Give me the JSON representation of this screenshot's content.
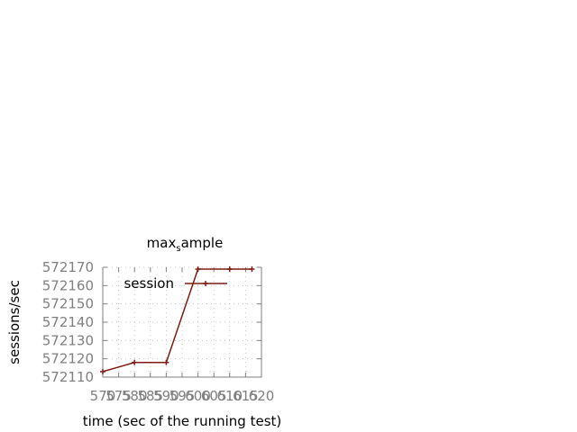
{
  "chart_data": {
    "type": "line",
    "title_main": "max",
    "title_sub": "s",
    "title_rest": "ample",
    "xlabel": "time (sec of the running test)",
    "ylabel": "sessions/sec",
    "xlim": [
      570,
      620
    ],
    "ylim": [
      572110,
      572170
    ],
    "xticks": [
      570,
      575,
      580,
      585,
      590,
      595,
      600,
      605,
      610,
      615,
      620
    ],
    "yticks": [
      572110,
      572120,
      572130,
      572140,
      572150,
      572160,
      572170
    ],
    "grid": true,
    "legend_position": "top-left",
    "series": [
      {
        "name": "session",
        "color": "#7f1a10",
        "x": [
          570,
          580,
          590,
          600,
          610,
          617
        ],
        "y": [
          572113,
          572118,
          572118,
          572169,
          572169,
          572169
        ]
      }
    ]
  }
}
